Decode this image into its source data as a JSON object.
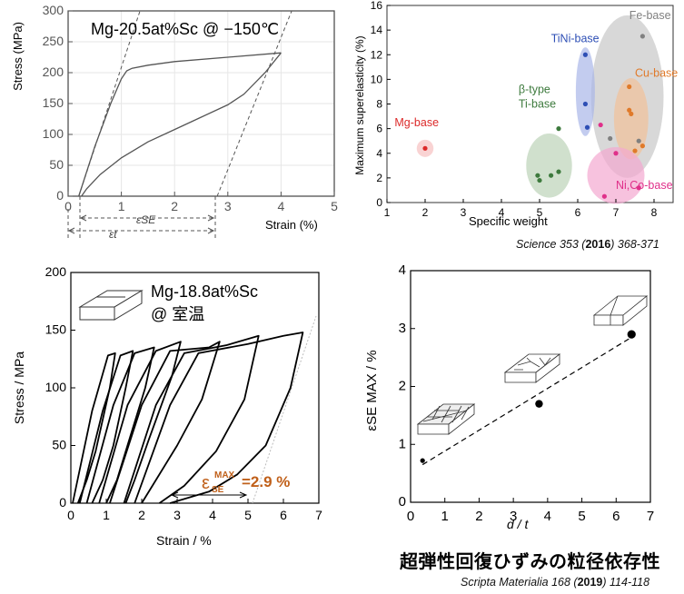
{
  "chart_data": [
    {
      "id": "panel_a",
      "type": "line",
      "title": "Mg-20.5at%Sc @ −150℃",
      "xlabel": "Strain (%)",
      "ylabel": "Stress (MPa)",
      "xlim": [
        0,
        5
      ],
      "ylim": [
        0,
        300
      ],
      "xticks": [
        "0",
        "1",
        "2",
        "3",
        "4",
        "5"
      ],
      "yticks": [
        "0",
        "50",
        "100",
        "150",
        "200",
        "250",
        "300"
      ],
      "annotations": {
        "eps_se": "εSE",
        "eps_t": "εt"
      },
      "series": [
        {
          "name": "loading",
          "x": [
            0.2,
            0.5,
            0.8,
            1.0,
            1.1,
            1.2,
            1.5,
            2.0,
            3.0,
            4.0
          ],
          "y": [
            0,
            80,
            150,
            190,
            203,
            207,
            212,
            218,
            225,
            232
          ]
        },
        {
          "name": "unloading",
          "x": [
            4.0,
            3.7,
            3.3,
            3.0,
            2.5,
            2.0,
            1.5,
            1.0,
            0.6,
            0.35,
            0.25
          ],
          "y": [
            232,
            200,
            165,
            148,
            128,
            108,
            88,
            62,
            35,
            12,
            0
          ]
        }
      ]
    },
    {
      "id": "panel_b",
      "type": "scatter",
      "xlabel": "Specific weight",
      "ylabel": "Maximum superelasticity (%)",
      "xlim": [
        1,
        8.5
      ],
      "ylim": [
        0,
        16
      ],
      "xticks": [
        "1",
        "2",
        "3",
        "4",
        "5",
        "6",
        "7",
        "8"
      ],
      "yticks": [
        "0",
        "2",
        "4",
        "6",
        "8",
        "10",
        "12",
        "14",
        "16"
      ],
      "series": [
        {
          "name": "Mg-base",
          "color": "#dc2a2a",
          "x": [
            2.0
          ],
          "y": [
            4.4
          ]
        },
        {
          "name": "TiNi-base",
          "color": "#2e4fb5",
          "x": [
            6.2,
            6.2,
            6.25
          ],
          "y": [
            12.0,
            8.0,
            6.1
          ]
        },
        {
          "name": "β-type Ti-base",
          "color": "#3d7a3d",
          "x": [
            5.5,
            4.95,
            5.3,
            5.5,
            5.0
          ],
          "y": [
            6.0,
            2.2,
            2.2,
            2.5,
            1.8
          ]
        },
        {
          "name": "Fe-base",
          "color": "#808080",
          "x": [
            7.7,
            6.85,
            7.6
          ],
          "y": [
            13.5,
            5.2,
            5.0
          ]
        },
        {
          "name": "Cu-base",
          "color": "#e07a2a",
          "x": [
            7.35,
            7.35,
            7.4,
            7.7,
            7.5
          ],
          "y": [
            9.4,
            7.5,
            7.2,
            4.6,
            4.2
          ]
        },
        {
          "name": "Ni,Co-base",
          "color": "#e0308a",
          "x": [
            6.6,
            6.7,
            7.6,
            7.0
          ],
          "y": [
            6.3,
            0.5,
            1.2,
            4.0
          ]
        }
      ],
      "citation": {
        "journal": "Science",
        "volume": "353",
        "year": "2016",
        "pages": "368-371"
      }
    },
    {
      "id": "panel_c",
      "type": "line",
      "title": "Mg-18.8at%Sc",
      "subtitle": "@ 室温",
      "xlabel": "Strain / %",
      "ylabel": "Stress / MPa",
      "xlim": [
        0,
        7
      ],
      "ylim": [
        0,
        200
      ],
      "xticks": [
        "0",
        "1",
        "2",
        "3",
        "4",
        "5",
        "6",
        "7"
      ],
      "yticks": [
        "0",
        "50",
        "100",
        "150",
        "200"
      ],
      "annotation": {
        "label": "ε",
        "sub": "SE",
        "sup": "MAX",
        "value": "=2.9 %"
      },
      "series": [
        {
          "name": "cycle-1",
          "x": [
            0.05,
            0.6,
            1.05,
            1.25,
            1.1,
            0.7,
            0.45,
            0.2
          ],
          "y": [
            0,
            80,
            128,
            130,
            100,
            45,
            20,
            0
          ]
        },
        {
          "name": "cycle-2",
          "x": [
            0.25,
            0.9,
            1.4,
            1.75,
            1.55,
            1.2,
            0.9,
            0.6
          ],
          "y": [
            0,
            80,
            128,
            132,
            100,
            50,
            20,
            0
          ]
        },
        {
          "name": "cycle-3",
          "x": [
            0.45,
            1.2,
            1.8,
            2.35,
            2.1,
            1.65,
            1.3,
            1.0
          ],
          "y": [
            0,
            85,
            130,
            135,
            100,
            55,
            20,
            0
          ]
        },
        {
          "name": "cycle-4",
          "x": [
            0.8,
            1.6,
            2.4,
            3.1,
            2.85,
            2.2,
            1.8,
            1.55
          ],
          "y": [
            0,
            85,
            132,
            140,
            110,
            55,
            20,
            0
          ]
        },
        {
          "name": "cycle-5",
          "x": [
            1.1,
            2.0,
            2.8,
            3.9,
            4.2,
            3.7,
            3.0,
            2.4,
            2.0
          ],
          "y": [
            0,
            85,
            132,
            135,
            140,
            90,
            50,
            20,
            0
          ]
        },
        {
          "name": "cycle-6",
          "x": [
            1.5,
            2.4,
            3.2,
            4.4,
            5.3,
            4.9,
            4.1,
            3.2,
            2.5
          ],
          "y": [
            0,
            85,
            130,
            137,
            145,
            90,
            45,
            15,
            0
          ]
        },
        {
          "name": "cycle-7",
          "x": [
            1.8,
            2.8,
            3.6,
            5.0,
            6.0,
            6.55,
            6.2,
            5.5,
            4.7,
            3.9,
            2.8
          ],
          "y": [
            0,
            85,
            130,
            138,
            145,
            148,
            100,
            50,
            25,
            10,
            0
          ]
        }
      ]
    },
    {
      "id": "panel_d",
      "type": "scatter",
      "xlabel": "d / t",
      "ylabel": "εSE MAX / %",
      "xlim": [
        0,
        7
      ],
      "ylim": [
        0,
        4
      ],
      "xticks": [
        "0",
        "1",
        "2",
        "3",
        "4",
        "5",
        "6",
        "7"
      ],
      "yticks": [
        "0",
        "1",
        "2",
        "3",
        "4"
      ],
      "series": [
        {
          "name": "measured",
          "x": [
            0.35,
            3.75,
            6.45
          ],
          "y": [
            0.72,
            1.7,
            2.9
          ]
        }
      ],
      "trend": {
        "x": [
          0.35,
          6.45
        ],
        "y": [
          0.65,
          2.85
        ]
      },
      "caption": "超弾性回復ひずみの粒径依存性",
      "citation": {
        "journal": "Scripta Materialia",
        "volume": "168",
        "year": "2019",
        "pages": "114-118"
      }
    }
  ]
}
